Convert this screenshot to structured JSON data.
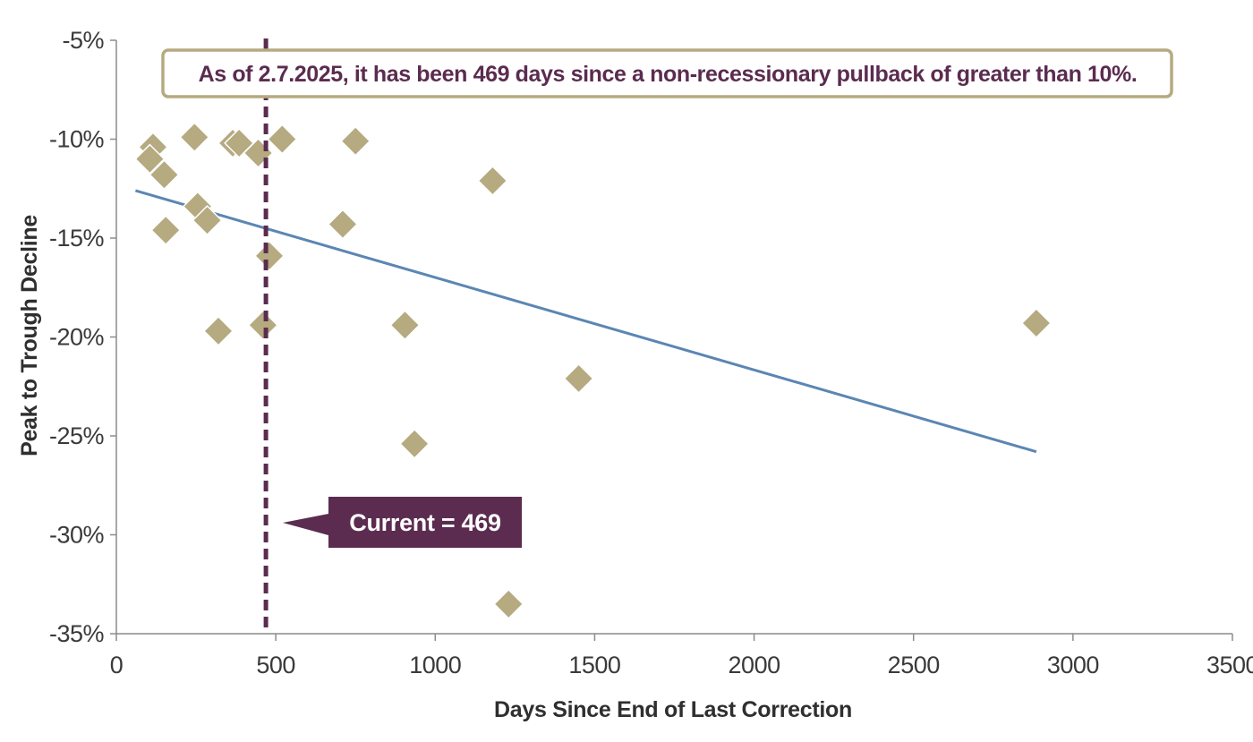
{
  "chart_data": {
    "type": "scatter",
    "title": "",
    "xlabel": "Days Since End of Last Correction",
    "ylabel": "Peak to Trough Decline",
    "xlim": [
      0,
      3500
    ],
    "ylim": [
      -35,
      -5
    ],
    "x_ticks": [
      0,
      500,
      1000,
      1500,
      2000,
      2500,
      3000,
      3500
    ],
    "x_tick_labels": [
      "0",
      "500",
      "1000",
      "1500",
      "2000",
      "2500",
      "3000",
      "3500"
    ],
    "y_ticks": [
      -5,
      -10,
      -15,
      -20,
      -25,
      -30,
      -35
    ],
    "y_tick_labels": [
      "-5%",
      "-10%",
      "-15%",
      "-20%",
      "-25%",
      "-30%",
      "-35%"
    ],
    "grid": false,
    "legend": "none",
    "series": [
      {
        "marker": "diamond",
        "color": "#b5aa80",
        "points": [
          {
            "x": 115,
            "y": -10.4
          },
          {
            "x": 105,
            "y": -11.0
          },
          {
            "x": 150,
            "y": -11.8
          },
          {
            "x": 155,
            "y": -14.6
          },
          {
            "x": 245,
            "y": -9.9
          },
          {
            "x": 255,
            "y": -13.4
          },
          {
            "x": 285,
            "y": -14.1
          },
          {
            "x": 320,
            "y": -19.7
          },
          {
            "x": 365,
            "y": -10.2
          },
          {
            "x": 385,
            "y": -10.2
          },
          {
            "x": 445,
            "y": -10.7
          },
          {
            "x": 460,
            "y": -19.4
          },
          {
            "x": 480,
            "y": -15.9
          },
          {
            "x": 520,
            "y": -10.0
          },
          {
            "x": 710,
            "y": -14.3
          },
          {
            "x": 750,
            "y": -10.1
          },
          {
            "x": 905,
            "y": -19.4
          },
          {
            "x": 935,
            "y": -25.4
          },
          {
            "x": 1180,
            "y": -12.1
          },
          {
            "x": 1230,
            "y": -33.5
          },
          {
            "x": 1450,
            "y": -22.1
          },
          {
            "x": 2885,
            "y": -19.3
          }
        ]
      }
    ],
    "trendline": {
      "color": "#5b86b3",
      "x": [
        60,
        2885
      ],
      "y": [
        -12.6,
        -25.8
      ]
    },
    "reference_line": {
      "x": 469,
      "color": "#5b2c4f",
      "style": "dashed"
    },
    "annotations": {
      "note": "As of 2.7.2025, it has been 469 days since a non-recessionary pullback of greater than 10%.",
      "callout": "Current = 469"
    }
  },
  "colors": {
    "marker": "#b5aa80",
    "trend": "#5b86b3",
    "accent": "#5b2c4f",
    "note_border": "#b5aa80",
    "axis": "#8c8c8c"
  }
}
